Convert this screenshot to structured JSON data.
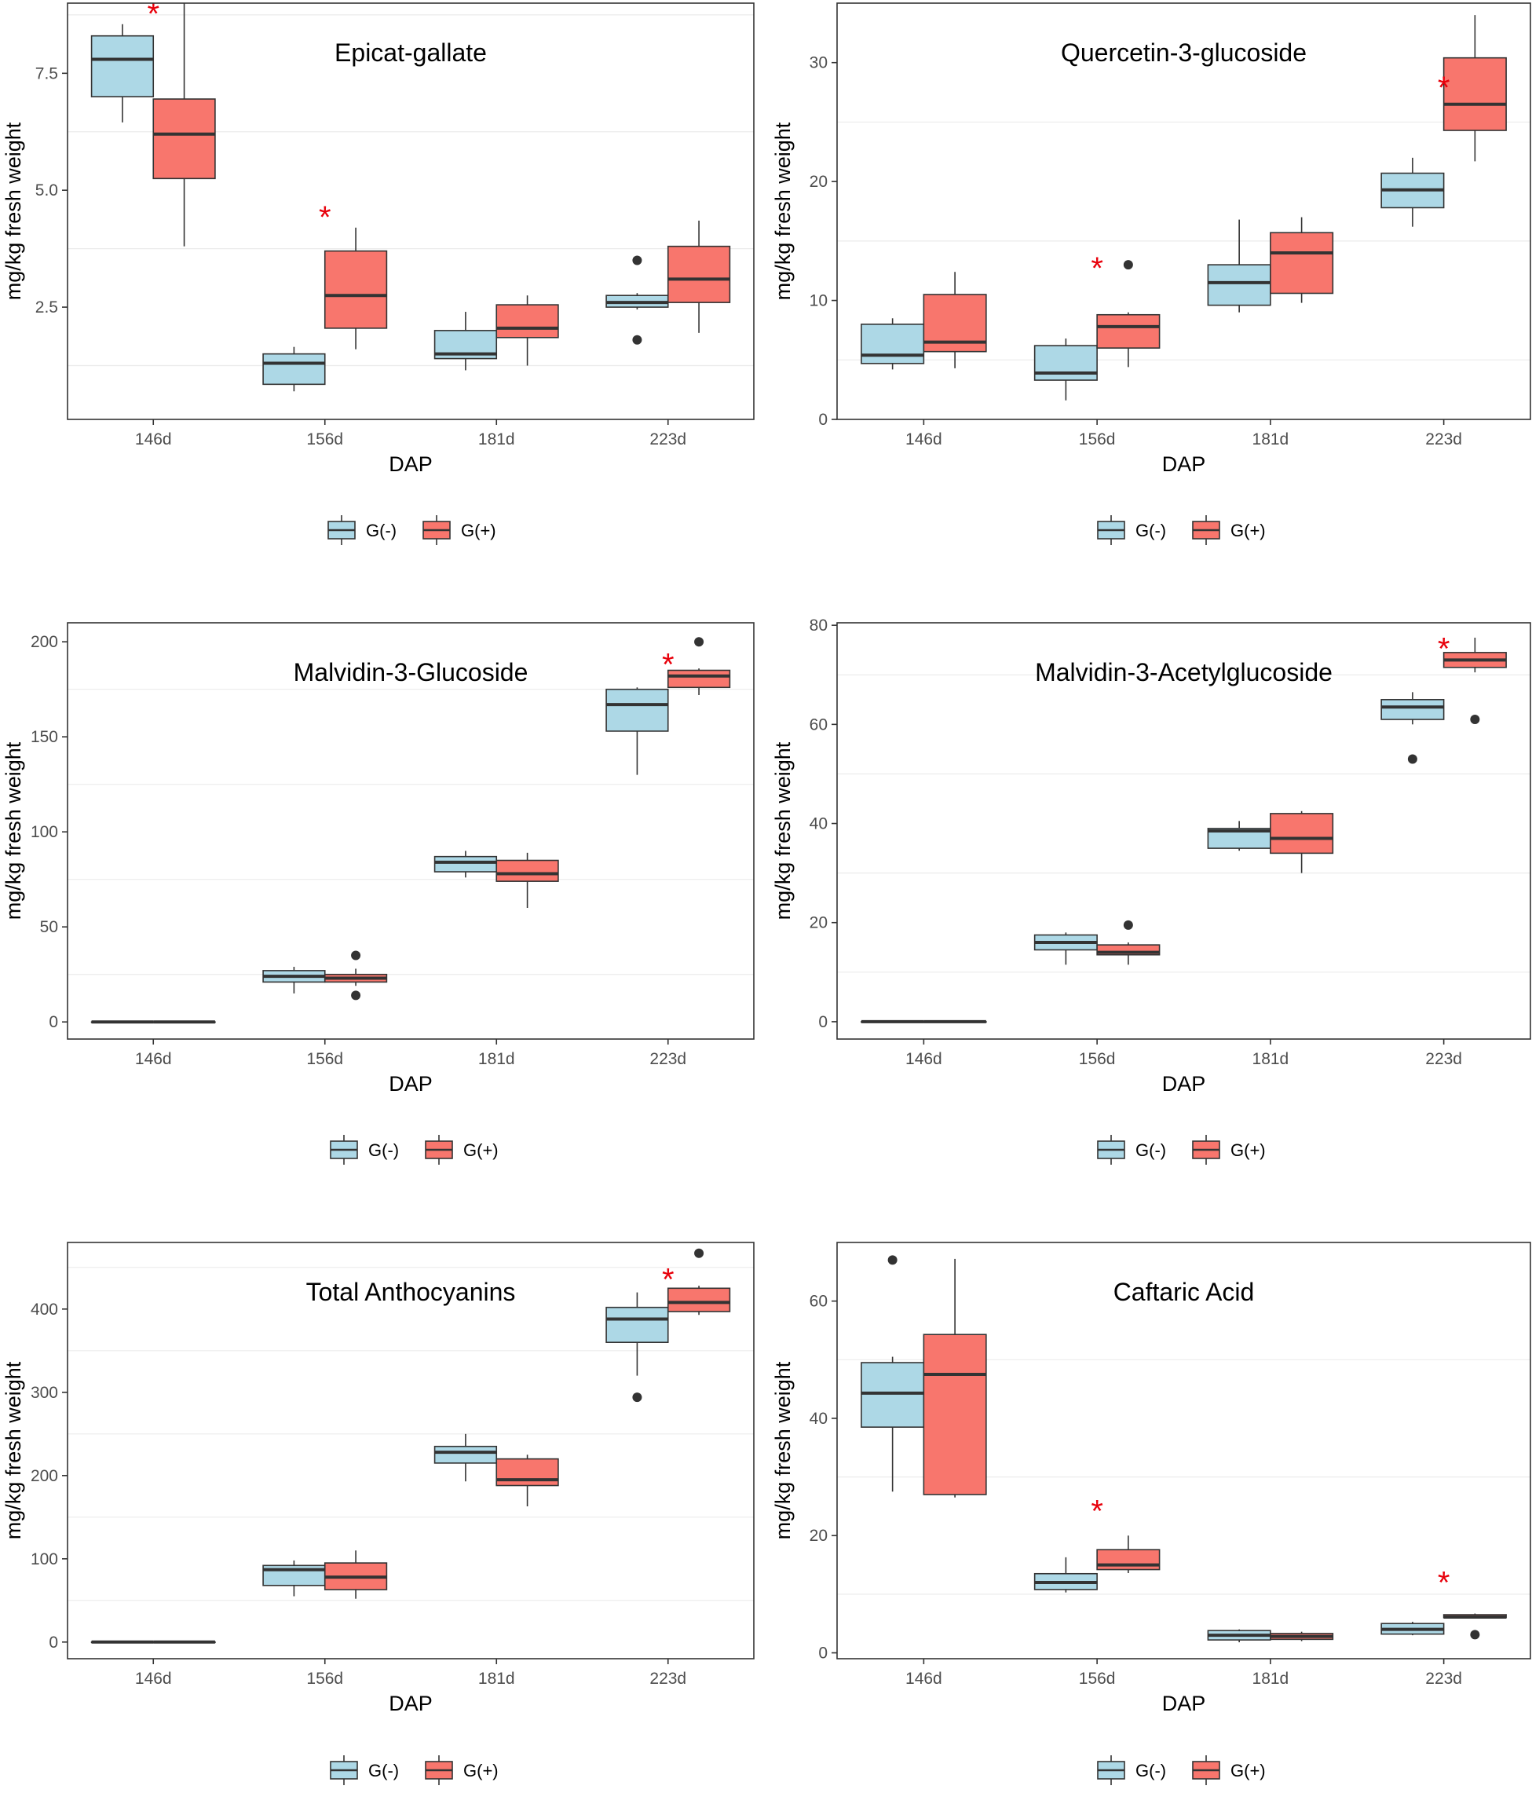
{
  "colors": {
    "g_minus": "#ADD8E6",
    "g_plus": "#F8766D",
    "star": "#E8000B",
    "grid": "#EBEBEB",
    "frame": "#333333",
    "box_line": "#333333"
  },
  "legend": {
    "g_minus_label": "G(-)",
    "g_plus_label": "G(+)"
  },
  "significance_marker": "*",
  "chart_data": [
    {
      "type": "box",
      "title": "Epicat-gallate",
      "xlabel": "DAP",
      "ylabel": "mg/kg fresh weight",
      "categories": [
        "146d",
        "156d",
        "181d",
        "223d"
      ],
      "ylim": [
        0.1,
        9.0
      ],
      "yticks": [
        2.5,
        5.0,
        7.5
      ],
      "ytick_labels": [
        "2.5",
        "5.0",
        "7.5"
      ],
      "series": [
        {
          "name": "G(-)",
          "boxes": [
            {
              "min": 6.45,
              "q1": 7.0,
              "median": 7.8,
              "q3": 8.3,
              "max": 8.55,
              "outliers": []
            },
            {
              "min": 0.7,
              "q1": 0.85,
              "median": 1.3,
              "q3": 1.5,
              "max": 1.65,
              "outliers": []
            },
            {
              "min": 1.15,
              "q1": 1.4,
              "median": 1.5,
              "q3": 2.0,
              "max": 2.4,
              "outliers": []
            },
            {
              "min": 2.45,
              "q1": 2.5,
              "median": 2.6,
              "q3": 2.75,
              "max": 2.8,
              "outliers": [
                3.5,
                1.8
              ]
            }
          ]
        },
        {
          "name": "G(+)",
          "boxes": [
            {
              "min": 3.8,
              "q1": 5.25,
              "median": 6.2,
              "q3": 6.95,
              "max": 9.0,
              "outliers": []
            },
            {
              "min": 1.6,
              "q1": 2.05,
              "median": 2.75,
              "q3": 3.7,
              "max": 4.2,
              "outliers": []
            },
            {
              "min": 1.25,
              "q1": 1.85,
              "median": 2.05,
              "q3": 2.55,
              "max": 2.75,
              "outliers": []
            },
            {
              "min": 1.95,
              "q1": 2.6,
              "median": 3.1,
              "q3": 3.8,
              "max": 4.35,
              "outliers": []
            }
          ]
        }
      ],
      "significant": [
        {
          "category": "146d",
          "y": 8.85
        },
        {
          "category": "156d",
          "y": 4.5
        }
      ]
    },
    {
      "type": "box",
      "title": "Quercetin-3-glucoside",
      "xlabel": "DAP",
      "ylabel": "mg/kg fresh weight",
      "categories": [
        "146d",
        "156d",
        "181d",
        "223d"
      ],
      "ylim": [
        0,
        35
      ],
      "yticks": [
        0,
        10,
        20,
        30
      ],
      "ytick_labels": [
        "0",
        "10",
        "20",
        "30"
      ],
      "series": [
        {
          "name": "G(-)",
          "boxes": [
            {
              "min": 4.2,
              "q1": 4.7,
              "median": 5.4,
              "q3": 8.0,
              "max": 8.5,
              "outliers": []
            },
            {
              "min": 1.6,
              "q1": 3.3,
              "median": 3.9,
              "q3": 6.2,
              "max": 6.8,
              "outliers": []
            },
            {
              "min": 9.0,
              "q1": 9.6,
              "median": 11.5,
              "q3": 13.0,
              "max": 16.8,
              "outliers": []
            },
            {
              "min": 16.2,
              "q1": 17.8,
              "median": 19.3,
              "q3": 20.7,
              "max": 22.0,
              "outliers": []
            }
          ]
        },
        {
          "name": "G(+)",
          "boxes": [
            {
              "min": 4.3,
              "q1": 5.7,
              "median": 6.5,
              "q3": 10.5,
              "max": 12.4,
              "outliers": []
            },
            {
              "min": 4.4,
              "q1": 6.0,
              "median": 7.8,
              "q3": 8.8,
              "max": 9.0,
              "outliers": [
                13.0
              ]
            },
            {
              "min": 9.8,
              "q1": 10.6,
              "median": 14.0,
              "q3": 15.7,
              "max": 17.0,
              "outliers": []
            },
            {
              "min": 21.7,
              "q1": 24.3,
              "median": 26.5,
              "q3": 30.4,
              "max": 34.0,
              "outliers": []
            }
          ]
        }
      ],
      "significant": [
        {
          "category": "156d",
          "y": 13.0
        },
        {
          "category": "223d",
          "y": 28.2
        }
      ]
    },
    {
      "type": "box",
      "title": "Malvidin-3-Glucoside",
      "xlabel": "DAP",
      "ylabel": "mg/kg fresh weight",
      "categories": [
        "146d",
        "156d",
        "181d",
        "223d"
      ],
      "ylim": [
        -9,
        210
      ],
      "yticks": [
        0,
        50,
        100,
        150,
        200
      ],
      "ytick_labels": [
        "0",
        "50",
        "100",
        "150",
        "200"
      ],
      "series": [
        {
          "name": "G(-)",
          "boxes": [
            {
              "min": 0,
              "q1": 0,
              "median": 0,
              "q3": 0,
              "max": 0,
              "outliers": []
            },
            {
              "min": 15,
              "q1": 21,
              "median": 24,
              "q3": 27,
              "max": 29,
              "outliers": []
            },
            {
              "min": 76,
              "q1": 79,
              "median": 84,
              "q3": 87,
              "max": 90,
              "outliers": []
            },
            {
              "min": 130,
              "q1": 153,
              "median": 167,
              "q3": 175,
              "max": 176,
              "outliers": []
            }
          ]
        },
        {
          "name": "G(+)",
          "boxes": [
            {
              "min": 0,
              "q1": 0,
              "median": 0,
              "q3": 0,
              "max": 0,
              "outliers": []
            },
            {
              "min": 19,
              "q1": 21,
              "median": 23,
              "q3": 25,
              "max": 28,
              "outliers": [
                35,
                14
              ]
            },
            {
              "min": 60,
              "q1": 74,
              "median": 78,
              "q3": 85,
              "max": 89,
              "outliers": []
            },
            {
              "min": 172,
              "q1": 176,
              "median": 182,
              "q3": 185,
              "max": 186,
              "outliers": [
                200
              ]
            }
          ]
        }
      ],
      "significant": [
        {
          "category": "223d",
          "y": 190
        }
      ]
    },
    {
      "type": "box",
      "title": "Malvidin-3-Acetylglucoside",
      "xlabel": "DAP",
      "ylabel": "mg/kg fresh weight",
      "categories": [
        "146d",
        "156d",
        "181d",
        "223d"
      ],
      "ylim": [
        -3.5,
        80.5
      ],
      "yticks": [
        0,
        20,
        40,
        60,
        80
      ],
      "ytick_labels": [
        "0",
        "20",
        "40",
        "60",
        "80"
      ],
      "series": [
        {
          "name": "G(-)",
          "boxes": [
            {
              "min": 0,
              "q1": 0,
              "median": 0,
              "q3": 0,
              "max": 0,
              "outliers": []
            },
            {
              "min": 11.5,
              "q1": 14.5,
              "median": 16,
              "q3": 17.5,
              "max": 18,
              "outliers": []
            },
            {
              "min": 34.5,
              "q1": 35,
              "median": 38.5,
              "q3": 39,
              "max": 40.5,
              "outliers": []
            },
            {
              "min": 60,
              "q1": 61,
              "median": 63.5,
              "q3": 65,
              "max": 66.5,
              "outliers": [
                53
              ]
            }
          ]
        },
        {
          "name": "G(+)",
          "boxes": [
            {
              "min": 0,
              "q1": 0,
              "median": 0,
              "q3": 0,
              "max": 0,
              "outliers": []
            },
            {
              "min": 11.5,
              "q1": 13.5,
              "median": 14,
              "q3": 15.5,
              "max": 16,
              "outliers": [
                19.5
              ]
            },
            {
              "min": 30,
              "q1": 34,
              "median": 37,
              "q3": 42,
              "max": 42.5,
              "outliers": []
            },
            {
              "min": 70.5,
              "q1": 71.5,
              "median": 73,
              "q3": 74.5,
              "max": 77.5,
              "outliers": [
                61
              ]
            }
          ]
        }
      ],
      "significant": [
        {
          "category": "223d",
          "y": 76
        }
      ]
    },
    {
      "type": "box",
      "title": "Total Anthocyanins",
      "xlabel": "DAP",
      "ylabel": "mg/kg fresh weight",
      "categories": [
        "146d",
        "156d",
        "181d",
        "223d"
      ],
      "ylim": [
        -20,
        480
      ],
      "yticks": [
        0,
        100,
        200,
        300,
        400
      ],
      "ytick_labels": [
        "0",
        "100",
        "200",
        "300",
        "400"
      ],
      "series": [
        {
          "name": "G(-)",
          "boxes": [
            {
              "min": 0,
              "q1": 0,
              "median": 0,
              "q3": 0,
              "max": 0,
              "outliers": []
            },
            {
              "min": 55,
              "q1": 68,
              "median": 87,
              "q3": 92,
              "max": 98,
              "outliers": []
            },
            {
              "min": 193,
              "q1": 215,
              "median": 228,
              "q3": 235,
              "max": 250,
              "outliers": []
            },
            {
              "min": 320,
              "q1": 360,
              "median": 388,
              "q3": 402,
              "max": 420,
              "outliers": [
                294
              ]
            }
          ]
        },
        {
          "name": "G(+)",
          "boxes": [
            {
              "min": 0,
              "q1": 0,
              "median": 0,
              "q3": 0,
              "max": 0,
              "outliers": []
            },
            {
              "min": 52,
              "q1": 63,
              "median": 78,
              "q3": 95,
              "max": 110,
              "outliers": []
            },
            {
              "min": 163,
              "q1": 188,
              "median": 195,
              "q3": 220,
              "max": 225,
              "outliers": []
            },
            {
              "min": 393,
              "q1": 397,
              "median": 408,
              "q3": 425,
              "max": 428,
              "outliers": [
                467
              ]
            }
          ]
        }
      ],
      "significant": [
        {
          "category": "223d",
          "y": 440
        }
      ]
    },
    {
      "type": "box",
      "title": "Caftaric Acid",
      "xlabel": "DAP",
      "ylabel": "mg/kg fresh weight",
      "categories": [
        "146d",
        "156d",
        "181d",
        "223d"
      ],
      "ylim": [
        -1,
        70
      ],
      "yticks": [
        0,
        20,
        40,
        60
      ],
      "ytick_labels": [
        "0",
        "20",
        "40",
        "60"
      ],
      "series": [
        {
          "name": "G(-)",
          "boxes": [
            {
              "min": 27.5,
              "q1": 38.5,
              "median": 44.3,
              "q3": 49.5,
              "max": 50.5,
              "outliers": [
                67
              ]
            },
            {
              "min": 10.3,
              "q1": 10.8,
              "median": 12,
              "q3": 13.5,
              "max": 16.3,
              "outliers": []
            },
            {
              "min": 1.8,
              "q1": 2.2,
              "median": 3,
              "q3": 3.8,
              "max": 4,
              "outliers": []
            },
            {
              "min": 3,
              "q1": 3.2,
              "median": 4,
              "q3": 5,
              "max": 5.3,
              "outliers": []
            }
          ]
        },
        {
          "name": "G(+)",
          "boxes": [
            {
              "min": 26.5,
              "q1": 27,
              "median": 47.5,
              "q3": 54.3,
              "max": 67.2,
              "outliers": []
            },
            {
              "min": 13.6,
              "q1": 14.2,
              "median": 15,
              "q3": 17.6,
              "max": 20,
              "outliers": []
            },
            {
              "min": 2,
              "q1": 2.3,
              "median": 2.8,
              "q3": 3.3,
              "max": 3.6,
              "outliers": []
            },
            {
              "min": 5.9,
              "q1": 6,
              "median": 6.1,
              "q3": 6.5,
              "max": 6.7,
              "outliers": [
                3.1
              ]
            }
          ]
        }
      ],
      "significant": [
        {
          "category": "156d",
          "y": 24.8
        },
        {
          "category": "223d",
          "y": 12.6
        }
      ]
    }
  ]
}
